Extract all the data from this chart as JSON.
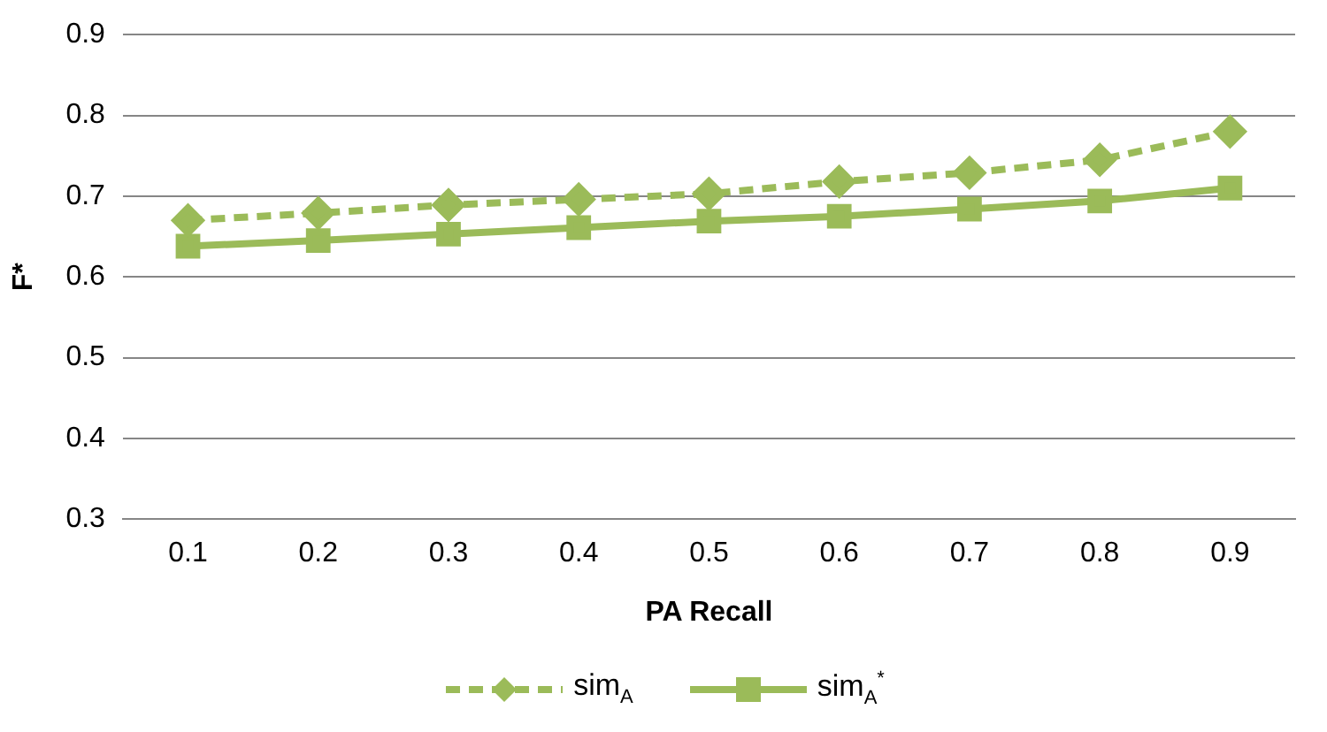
{
  "chart_data": {
    "type": "line",
    "xlabel": "PA Recall",
    "ylabel": "F*",
    "categories": [
      "0.1",
      "0.2",
      "0.3",
      "0.4",
      "0.5",
      "0.6",
      "0.7",
      "0.8",
      "0.9"
    ],
    "ylim": [
      0.3,
      0.9
    ],
    "yticks": [
      0.3,
      0.4,
      0.5,
      0.6,
      0.7,
      0.8,
      0.9
    ],
    "grid": "y",
    "legend": "bottom",
    "series": [
      {
        "name": "sim$_{A}$",
        "color": "#9bbb59",
        "marker": "diamond",
        "line_style": "dashed",
        "values": [
          0.67,
          0.679,
          0.689,
          0.696,
          0.703,
          0.718,
          0.729,
          0.745,
          0.78
        ]
      },
      {
        "name": "sim$_{A}$$^{*}$",
        "color": "#9bbb59",
        "marker": "square",
        "line_style": "solid",
        "values": [
          0.638,
          0.645,
          0.653,
          0.661,
          0.669,
          0.675,
          0.684,
          0.694,
          0.71
        ]
      }
    ]
  }
}
